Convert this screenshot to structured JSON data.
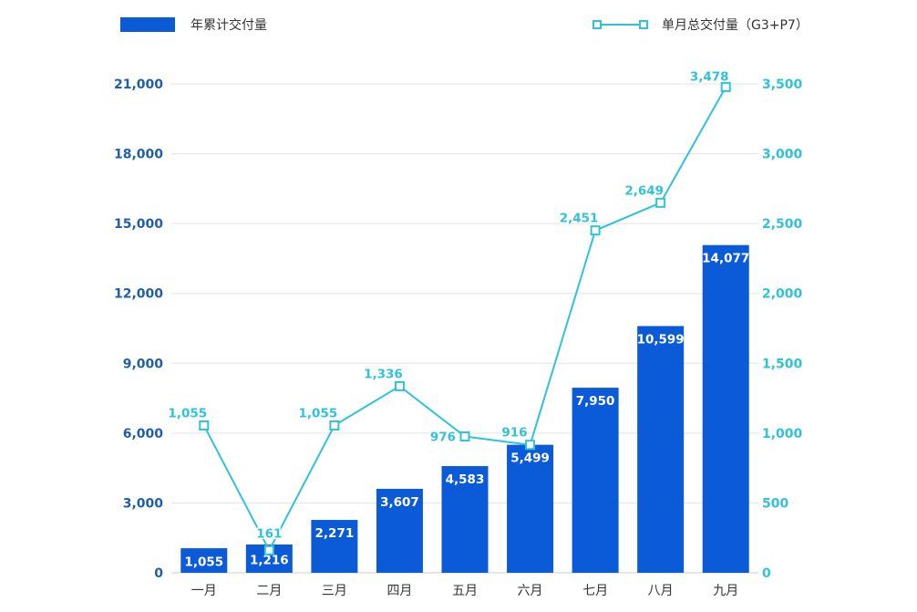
{
  "chart_data": {
    "type": "bar",
    "categories": [
      "一月",
      "二月",
      "三月",
      "四月",
      "五月",
      "六月",
      "七月",
      "八月",
      "九月"
    ],
    "series": [
      {
        "name": "年累计交付量",
        "type": "bar",
        "axis": "left",
        "values": [
          1055,
          1216,
          2271,
          3607,
          4583,
          5499,
          7950,
          10599,
          14077
        ],
        "labels": [
          "1,055",
          "1,216",
          "2,271",
          "3,607",
          "4,583",
          "5,499",
          "7,950",
          "10,599",
          "14,077"
        ]
      },
      {
        "name": "单月总交付量（G3+P7）",
        "type": "line",
        "axis": "right",
        "values": [
          1055,
          161,
          1055,
          1336,
          976,
          916,
          2451,
          2649,
          3478
        ],
        "labels": [
          "1,055",
          "161",
          "1,055",
          "1,336",
          "976",
          "916",
          "2,451",
          "2,649",
          "3,478"
        ]
      }
    ],
    "y_left": {
      "ylim": [
        0,
        21000
      ],
      "ticks": [
        "0",
        "3,000",
        "6,000",
        "9,000",
        "12,000",
        "15,000",
        "18,000",
        "21,000"
      ]
    },
    "y_right": {
      "ylim": [
        0,
        3500
      ],
      "ticks": [
        "0",
        "500",
        "1,000",
        "1,500",
        "2,000",
        "2,500",
        "3,000",
        "3,500"
      ]
    },
    "grid": true,
    "legend_placement": "top",
    "colors": {
      "bar": "#0b5ad8",
      "line": "#2fc3da",
      "left_axis_text": "#1f5fa8",
      "right_axis_text": "#2fc3da",
      "grid": "#e3e3e3",
      "category_text": "#333333",
      "bar_label_text": "#ffffff"
    }
  }
}
